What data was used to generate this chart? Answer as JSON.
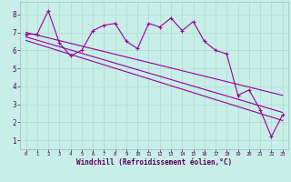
{
  "bg_color": "#c8eee8",
  "grid_color": "#b0d8d0",
  "line_color": "#990099",
  "xlabel": "Windchill (Refroidissement éolien,°C)",
  "xlim": [
    -0.5,
    23.5
  ],
  "ylim": [
    0.5,
    8.7
  ],
  "yticks": [
    1,
    2,
    3,
    4,
    5,
    6,
    7,
    8
  ],
  "xticks": [
    0,
    1,
    2,
    3,
    4,
    5,
    6,
    7,
    8,
    9,
    10,
    11,
    12,
    13,
    14,
    15,
    16,
    17,
    18,
    19,
    20,
    21,
    22,
    23
  ],
  "jagged_x": [
    0,
    1,
    2,
    3,
    4,
    5,
    6,
    7,
    8,
    9,
    10,
    11,
    12,
    13,
    14,
    15,
    16,
    17,
    18,
    19,
    20,
    21,
    22,
    23
  ],
  "jagged_y": [
    6.9,
    6.9,
    8.2,
    6.4,
    5.7,
    6.0,
    7.1,
    7.4,
    7.5,
    6.5,
    6.1,
    7.5,
    7.3,
    7.8,
    7.1,
    7.6,
    6.5,
    6.0,
    5.8,
    3.5,
    3.8,
    2.7,
    1.2,
    2.4
  ],
  "line1_x": [
    0,
    23
  ],
  "line1_y": [
    7.0,
    3.5
  ],
  "line2_x": [
    0,
    23
  ],
  "line2_y": [
    6.75,
    2.55
  ],
  "line3_x": [
    0,
    23
  ],
  "line3_y": [
    6.55,
    2.1
  ]
}
